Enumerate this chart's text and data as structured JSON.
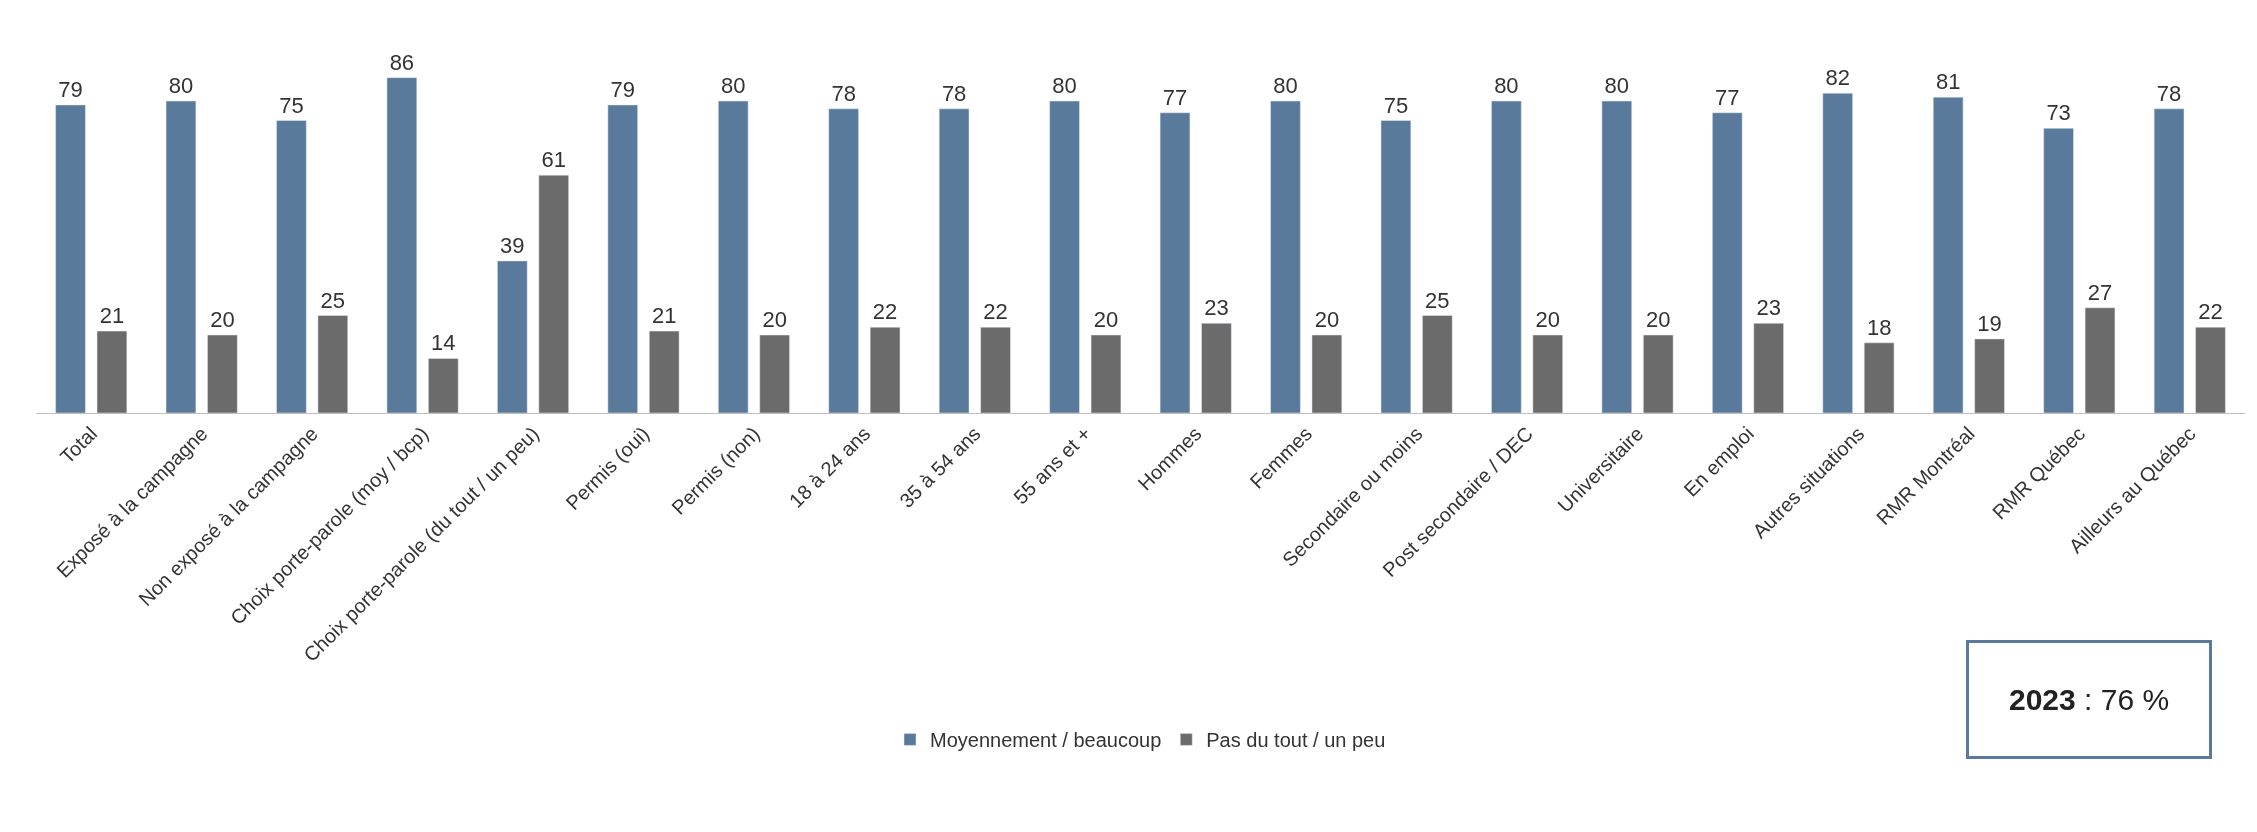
{
  "chart_data": {
    "type": "bar",
    "categories": [
      "Total",
      "Exposé à la campagne",
      "Non exposé à la campagne",
      "Choix porte-parole (moy / bcp)",
      "Choix porte-parole (du tout / un peu)",
      "Permis (oui)",
      "Permis (non)",
      "18 à 24 ans",
      "35 à 54 ans",
      "55 ans et +",
      "Hommes",
      "Femmes",
      "Secondaire ou moins",
      "Post secondaire / DEC",
      "Universitaire",
      "En emploi",
      "Autres situations",
      "RMR Montréal",
      "RMR Québec",
      "Ailleurs au Québec"
    ],
    "series": [
      {
        "name": "Moyennement / beaucoup",
        "color": "#5a7a9c",
        "values": [
          79,
          80,
          75,
          86,
          39,
          79,
          80,
          78,
          78,
          80,
          77,
          80,
          75,
          80,
          80,
          77,
          82,
          81,
          73,
          78
        ]
      },
      {
        "name": "Pas du tout / un peu",
        "color": "#6b6b6b",
        "values": [
          21,
          20,
          25,
          14,
          61,
          21,
          20,
          22,
          22,
          20,
          23,
          20,
          25,
          20,
          20,
          23,
          18,
          19,
          27,
          22
        ]
      }
    ],
    "tick_labels": "x",
    "data_labels": true,
    "legend": "bottom",
    "annotations": [
      "2023 : 76 %"
    ]
  }
}
